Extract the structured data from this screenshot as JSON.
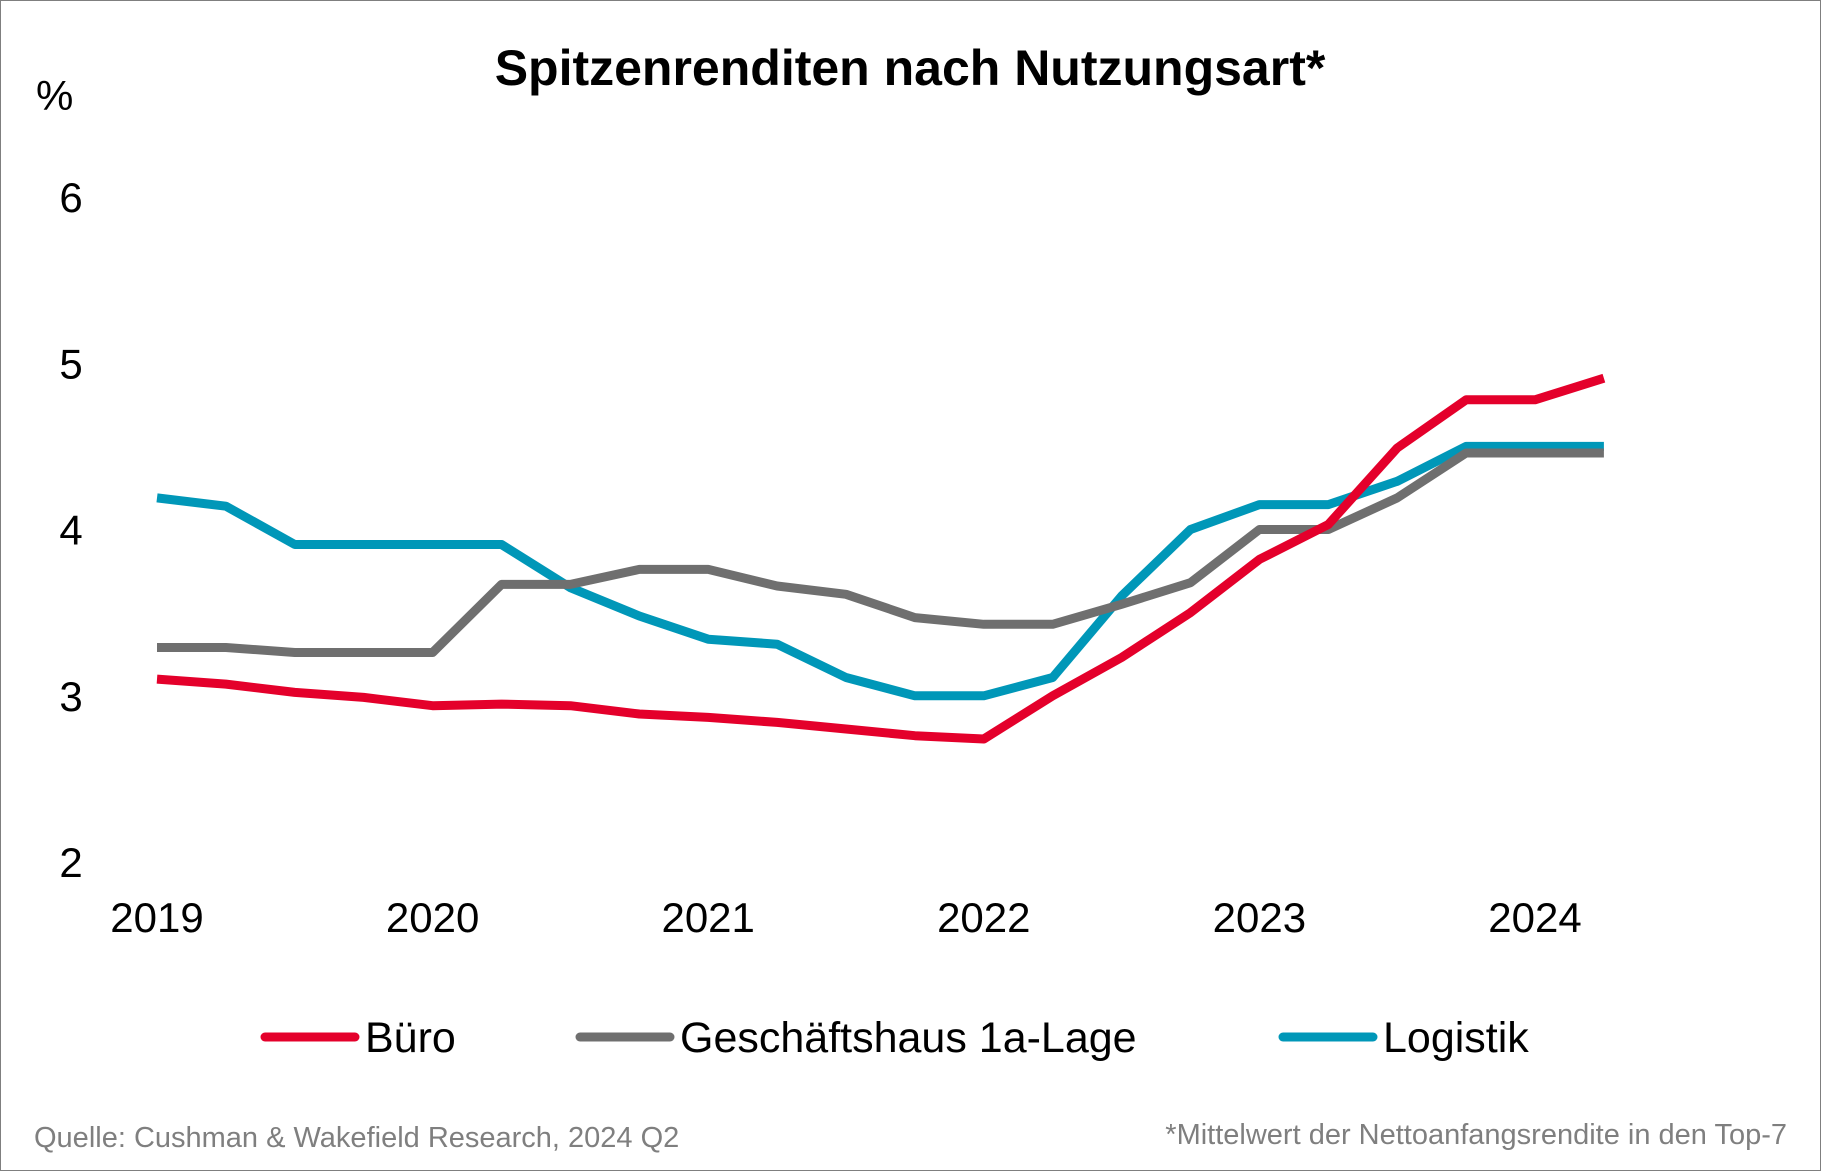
{
  "chart_data": {
    "type": "line",
    "title": "Spitzenrenditen nach Nutzungsart*",
    "ylabel": "%",
    "xlabel": "",
    "ylim": [
      2,
      6
    ],
    "yticks": [
      "2",
      "3",
      "4",
      "5",
      "6"
    ],
    "ytick_values": [
      2,
      3,
      4,
      5,
      6
    ],
    "grid": false,
    "legend_position": "bottom",
    "x_labels": [
      "2019",
      "2020",
      "2021",
      "2022",
      "2023",
      "2024"
    ],
    "x": [
      "2019 Q1",
      "2019 Q2",
      "2019 Q3",
      "2019 Q4",
      "2020 Q1",
      "2020 Q2",
      "2020 Q3",
      "2020 Q4",
      "2021 Q1",
      "2021 Q2",
      "2021 Q3",
      "2021 Q4",
      "2022 Q1",
      "2022 Q2",
      "2022 Q3",
      "2022 Q4",
      "2023 Q1",
      "2023 Q2",
      "2023 Q3",
      "2023 Q4",
      "2024 Q1",
      "2024 Q2"
    ],
    "series": [
      {
        "name": "Büro",
        "color": "#e4002b",
        "values": [
          3.1,
          3.07,
          3.02,
          2.99,
          2.94,
          2.95,
          2.94,
          2.89,
          2.87,
          2.84,
          2.8,
          2.76,
          2.74,
          3.0,
          3.23,
          3.5,
          3.82,
          4.03,
          4.49,
          4.78,
          4.78,
          4.91
        ]
      },
      {
        "name": "Geschäftshaus 1a-Lage",
        "color": "#6f6f6f",
        "values": [
          3.29,
          3.29,
          3.26,
          3.26,
          3.26,
          3.67,
          3.67,
          3.76,
          3.76,
          3.66,
          3.61,
          3.47,
          3.43,
          3.43,
          3.55,
          3.68,
          4.0,
          4.0,
          4.19,
          4.46,
          4.46,
          4.46
        ]
      },
      {
        "name": "Logistik",
        "color": "#0097b8",
        "values": [
          4.19,
          4.14,
          3.91,
          3.91,
          3.91,
          3.91,
          3.65,
          3.48,
          3.34,
          3.31,
          3.11,
          3.0,
          3.0,
          3.11,
          3.6,
          4.0,
          4.15,
          4.15,
          4.29,
          4.5,
          4.5,
          4.5
        ]
      }
    ]
  },
  "footer": {
    "source": "Quelle: Cushman & Wakefield Research, 2024 Q2",
    "note": "*Mittelwert der Nettoanfangsrendite in den Top-7"
  }
}
